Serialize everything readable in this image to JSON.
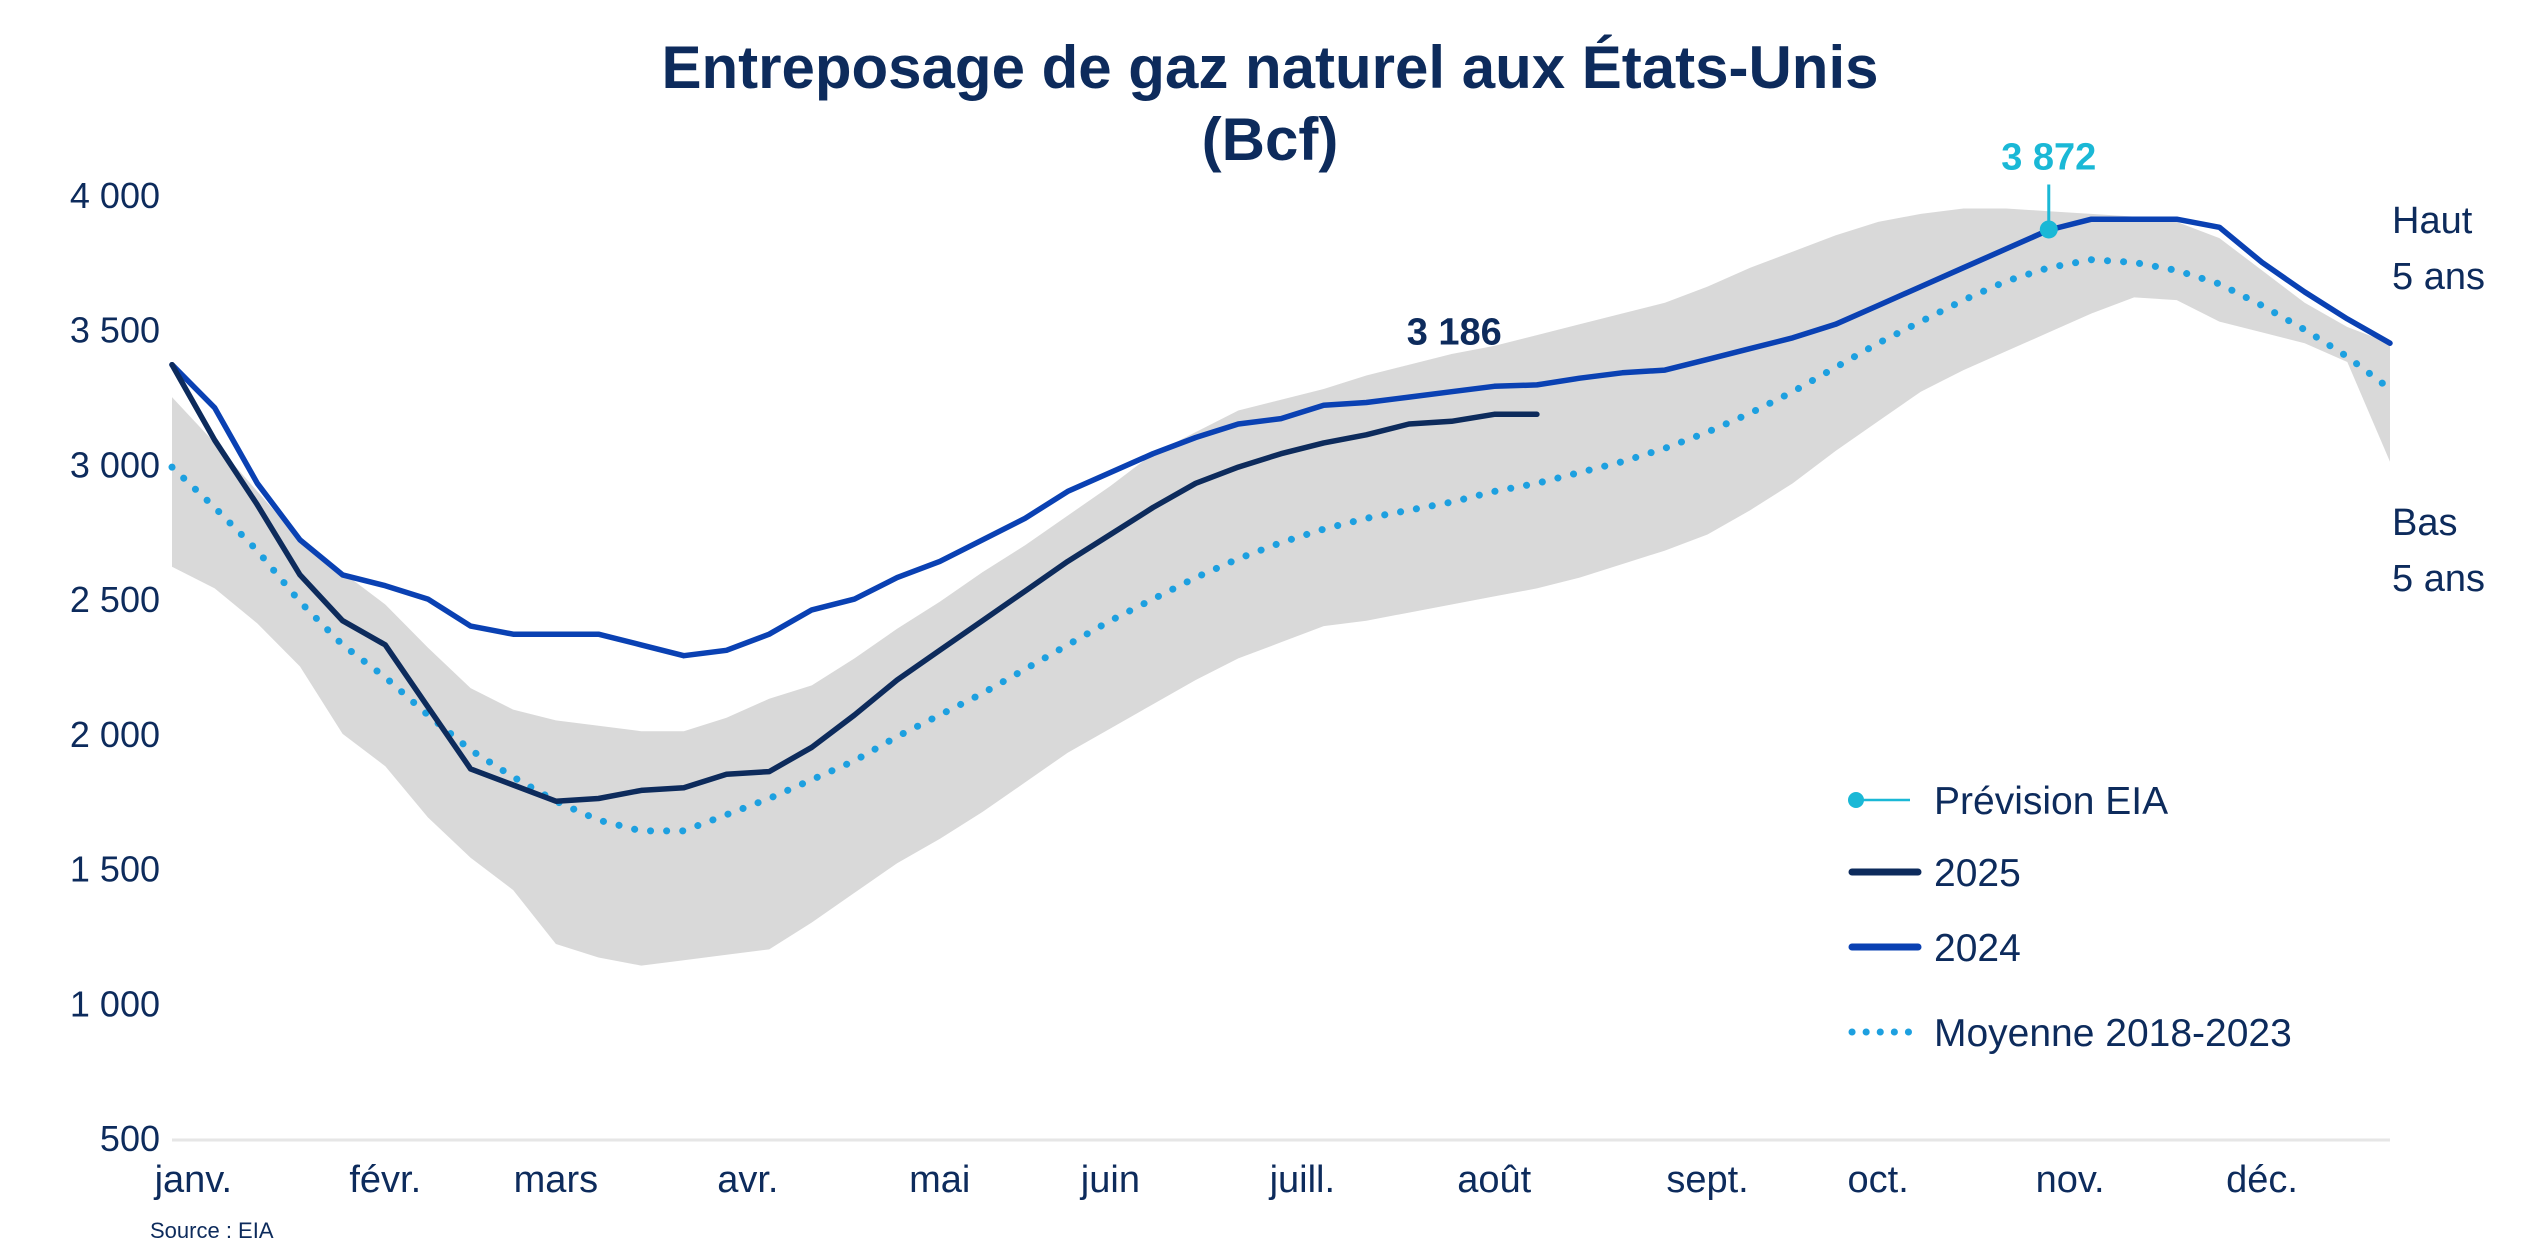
{
  "chart_data": {
    "type": "line",
    "title": "Entreposage de gaz naturel aux États-Unis",
    "subtitle": "(Bcf)",
    "source": "Source : EIA",
    "ylim": [
      500,
      4000
    ],
    "yticks": [
      500,
      1000,
      1500,
      2000,
      2500,
      3000,
      3500,
      4000
    ],
    "ytick_labels": [
      "500",
      "1 000",
      "1 500",
      "2 000",
      "2 500",
      "3 000",
      "3 500",
      "4 000"
    ],
    "xlim": [
      1,
      53
    ],
    "x_unit": "semaine",
    "month_labels": [
      "janv.",
      "févr.",
      "mars",
      "avr.",
      "mai",
      "juin",
      "juill.",
      "août",
      "sept.",
      "oct.",
      "nov.",
      "déc."
    ],
    "month_label_positions": [
      1.5,
      6,
      10,
      14.5,
      19,
      23,
      27.5,
      32,
      37,
      41,
      45.5,
      50
    ],
    "grid": false,
    "legend_position": "bottom-right",
    "band": {
      "high_label": [
        "Haut",
        "5 ans"
      ],
      "low_label": [
        "Bas",
        "5 ans"
      ],
      "x": [
        1,
        2,
        3,
        4,
        5,
        6,
        7,
        8,
        9,
        10,
        11,
        12,
        13,
        14,
        15,
        16,
        17,
        18,
        19,
        20,
        21,
        22,
        23,
        24,
        25,
        26,
        27,
        28,
        29,
        30,
        31,
        32,
        33,
        34,
        35,
        36,
        37,
        38,
        39,
        40,
        41,
        42,
        43,
        44,
        45,
        46,
        47,
        48,
        49,
        50,
        51,
        52,
        53
      ],
      "high": [
        3250,
        3080,
        2900,
        2720,
        2600,
        2480,
        2320,
        2170,
        2090,
        2050,
        2030,
        2010,
        2010,
        2060,
        2130,
        2180,
        2280,
        2390,
        2490,
        2600,
        2700,
        2810,
        2920,
        3040,
        3120,
        3200,
        3240,
        3280,
        3330,
        3370,
        3410,
        3440,
        3480,
        3520,
        3560,
        3600,
        3660,
        3730,
        3790,
        3850,
        3900,
        3930,
        3950,
        3950,
        3940,
        3930,
        3920,
        3900,
        3840,
        3720,
        3600,
        3510,
        3450
      ],
      "low": [
        2620,
        2540,
        2410,
        2250,
        2000,
        1880,
        1690,
        1540,
        1420,
        1220,
        1170,
        1140,
        1160,
        1180,
        1200,
        1300,
        1410,
        1520,
        1610,
        1710,
        1820,
        1930,
        2020,
        2110,
        2200,
        2280,
        2340,
        2400,
        2420,
        2450,
        2480,
        2510,
        2540,
        2580,
        2630,
        2680,
        2740,
        2830,
        2930,
        3050,
        3160,
        3270,
        3350,
        3420,
        3490,
        3560,
        3620,
        3610,
        3530,
        3490,
        3450,
        3380,
        3010
      ]
    },
    "series": [
      {
        "name": "2025",
        "color": "#0d2b5c",
        "style": "solid",
        "x": [
          1,
          2,
          3,
          4,
          5,
          6,
          7,
          8,
          9,
          10,
          11,
          12,
          13,
          14,
          15,
          16,
          17,
          18,
          19,
          20,
          21,
          22,
          23,
          24,
          25,
          26,
          27,
          28,
          29,
          30,
          31,
          32,
          33
        ],
        "y": [
          3370,
          3090,
          2850,
          2590,
          2420,
          2330,
          2100,
          1870,
          1810,
          1750,
          1760,
          1790,
          1800,
          1850,
          1860,
          1950,
          2070,
          2200,
          2310,
          2420,
          2530,
          2640,
          2740,
          2840,
          2930,
          2990,
          3040,
          3080,
          3110,
          3150,
          3160,
          3186,
          3186
        ]
      },
      {
        "name": "2024",
        "color": "#0a41b3",
        "style": "solid",
        "x": [
          1,
          2,
          3,
          4,
          5,
          6,
          7,
          8,
          9,
          10,
          11,
          12,
          13,
          14,
          15,
          16,
          17,
          18,
          19,
          20,
          21,
          22,
          23,
          24,
          25,
          26,
          27,
          28,
          29,
          30,
          31,
          32,
          33,
          34,
          35,
          36,
          37,
          38,
          39,
          40,
          41,
          42,
          43,
          44,
          45,
          46,
          47,
          48,
          49,
          50,
          51,
          52,
          53
        ],
        "y": [
          3370,
          3210,
          2930,
          2720,
          2590,
          2550,
          2500,
          2400,
          2370,
          2370,
          2370,
          2330,
          2290,
          2310,
          2370,
          2460,
          2500,
          2580,
          2640,
          2720,
          2800,
          2900,
          2970,
          3040,
          3100,
          3150,
          3170,
          3220,
          3230,
          3250,
          3270,
          3290,
          3295,
          3320,
          3340,
          3350,
          3390,
          3430,
          3470,
          3520,
          3590,
          3660,
          3730,
          3800,
          3870,
          3910,
          3910,
          3910,
          3880,
          3750,
          3640,
          3540,
          3450
        ]
      },
      {
        "name": "Moyenne 2018-2023",
        "color": "#1da0e0",
        "style": "dotted",
        "x": [
          1,
          2,
          3,
          4,
          5,
          6,
          7,
          8,
          9,
          10,
          11,
          12,
          13,
          14,
          15,
          16,
          17,
          18,
          19,
          20,
          21,
          22,
          23,
          24,
          25,
          26,
          27,
          28,
          29,
          30,
          31,
          32,
          33,
          34,
          35,
          36,
          37,
          38,
          39,
          40,
          41,
          42,
          43,
          44,
          45,
          46,
          47,
          48,
          49,
          50,
          51,
          52,
          53
        ],
        "y": [
          2990,
          2840,
          2680,
          2490,
          2330,
          2210,
          2070,
          1940,
          1840,
          1750,
          1680,
          1640,
          1640,
          1700,
          1760,
          1830,
          1900,
          1990,
          2070,
          2150,
          2240,
          2330,
          2420,
          2500,
          2580,
          2650,
          2710,
          2760,
          2800,
          2830,
          2860,
          2900,
          2930,
          2970,
          3010,
          3060,
          3120,
          3190,
          3270,
          3360,
          3450,
          3530,
          3610,
          3680,
          3730,
          3760,
          3750,
          3720,
          3670,
          3590,
          3500,
          3400,
          3280
        ]
      }
    ],
    "forecast": {
      "name": "Prévision EIA",
      "color": "#1ab8d6",
      "x": 45,
      "y": 3872,
      "label": "3 872"
    },
    "annotations": [
      {
        "text": "3 186",
        "x": 32,
        "y": 3186
      }
    ],
    "legend": [
      {
        "label": "Prévision EIA",
        "marker": "dot-line",
        "color": "#1ab8d6"
      },
      {
        "label": "2025",
        "marker": "line",
        "color": "#0d2b5c"
      },
      {
        "label": "2024",
        "marker": "line",
        "color": "#0a41b3"
      },
      {
        "label": "Moyenne 2018-2023",
        "marker": "dotted",
        "color": "#1da0e0"
      }
    ],
    "band_color": "#d9d9d9",
    "axis_color": "#e6e6e6"
  }
}
